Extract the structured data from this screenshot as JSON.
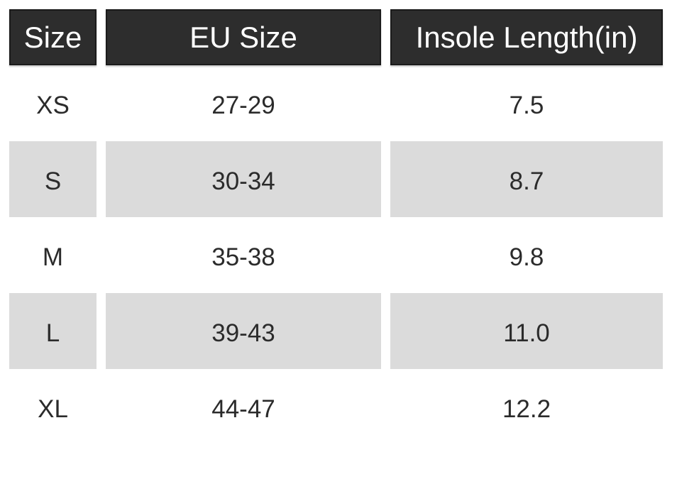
{
  "chart_data": {
    "type": "table",
    "columns": [
      "Size",
      "EU Size",
      "Insole Length(in)"
    ],
    "rows": [
      [
        "XS",
        "27-29",
        "7.5"
      ],
      [
        "S",
        "30-34",
        "8.7"
      ],
      [
        "M",
        "35-38",
        "9.8"
      ],
      [
        "L",
        "39-43",
        "11.0"
      ],
      [
        "XL",
        "44-47",
        "12.2"
      ]
    ]
  },
  "colors": {
    "header_bg": "#2d2d2d",
    "header_border": "#1b1b1b",
    "header_text": "#ffffff",
    "shaded_row_bg": "#dbdbdb",
    "body_text": "#2b2b2b",
    "page_bg": "#ffffff"
  }
}
